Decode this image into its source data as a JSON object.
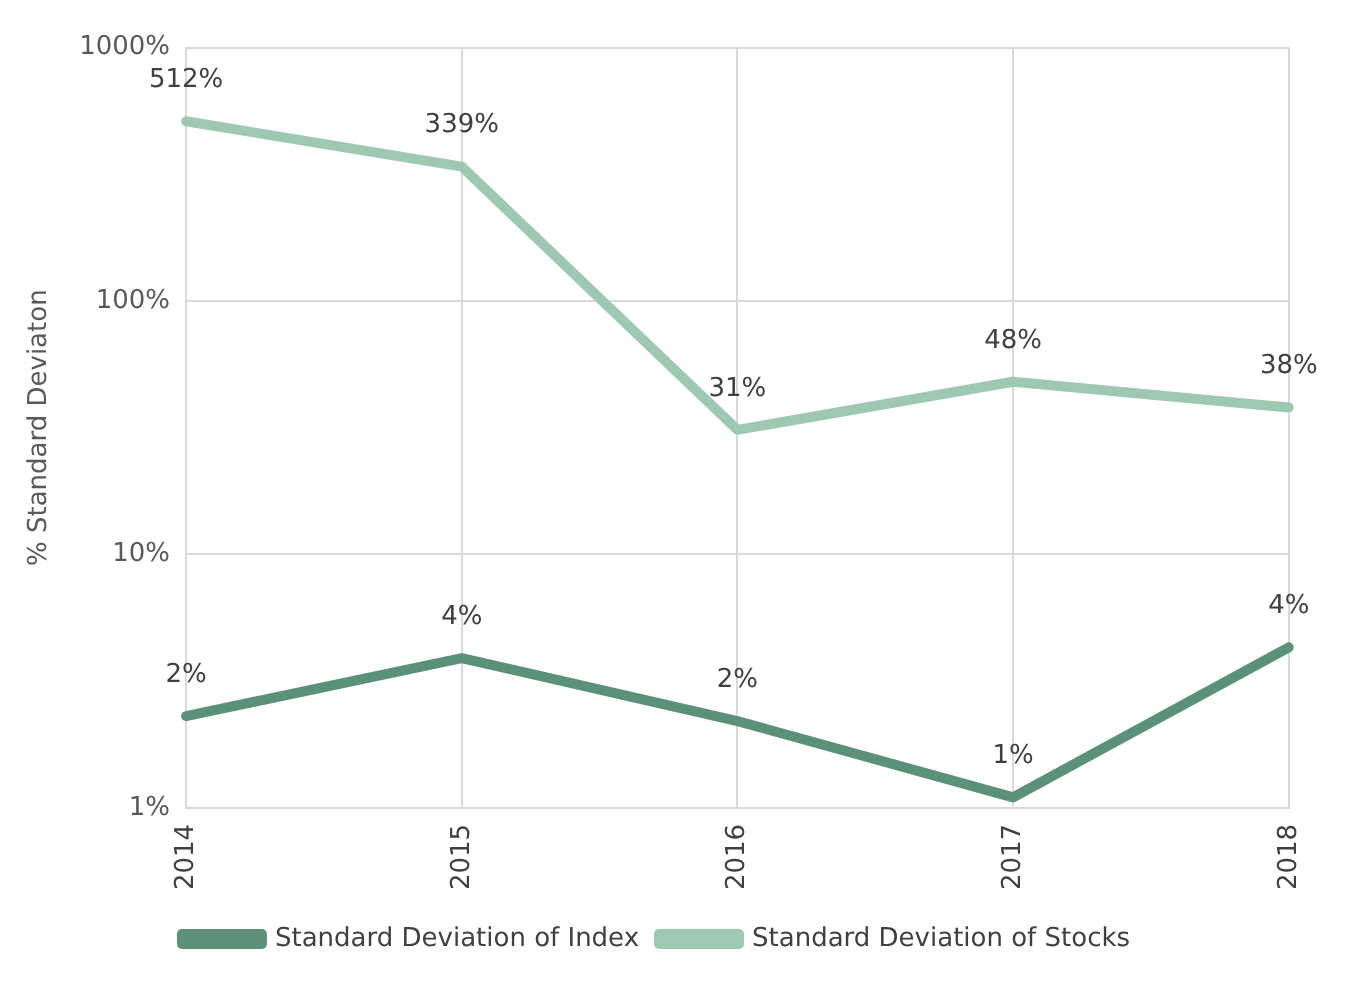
{
  "chart_data": {
    "type": "line",
    "ylabel": "% Standard Deviaton",
    "categories": [
      "2014",
      "2015",
      "2016",
      "2017",
      "2018"
    ],
    "series": [
      {
        "name": "Standard Deviation of Index",
        "color": "#5b9178",
        "values": [
          2.3,
          3.9,
          2.2,
          1.1,
          4.3
        ],
        "value_labels": [
          "2%",
          "4%",
          "2%",
          "1%",
          "4%"
        ]
      },
      {
        "name": "Standard Deviation of Stocks",
        "color": "#9fc8b3",
        "values": [
          512,
          339,
          31,
          48,
          38
        ],
        "value_labels": [
          "512%",
          "339%",
          "31%",
          "48%",
          "38%"
        ]
      }
    ],
    "log": true,
    "ylim": [
      1,
      1000
    ],
    "yticks": [
      {
        "value": 1,
        "label": "1%"
      },
      {
        "value": 10,
        "label": "10%"
      },
      {
        "value": 100,
        "label": "100%"
      },
      {
        "value": 1000,
        "label": "1000%"
      }
    ],
    "grid": true,
    "legend": "bottom",
    "marker": "none",
    "line_style": "solid"
  }
}
